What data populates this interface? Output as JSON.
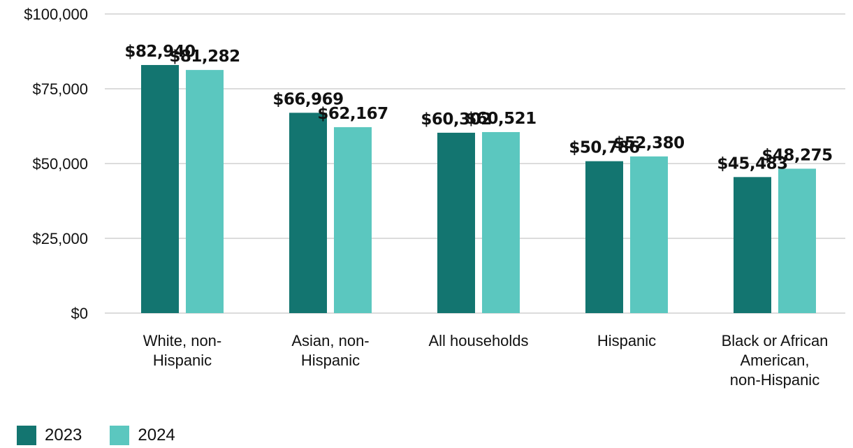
{
  "chart_data": {
    "type": "bar",
    "categories": [
      [
        "White, non-",
        "Hispanic"
      ],
      [
        "Asian, non-",
        "Hispanic"
      ],
      [
        "All households"
      ],
      [
        "Hispanic"
      ],
      [
        "Black or African",
        "American,",
        "non-Hispanic"
      ]
    ],
    "series": [
      {
        "name": "2023",
        "color": "#137570",
        "values": [
          82940,
          66969,
          60302,
          50786,
          45483
        ],
        "labels": [
          "$82,940",
          "$66,969",
          "$60,302",
          "$50,786",
          "$45,483"
        ]
      },
      {
        "name": "2024",
        "color": "#5BC7BF",
        "values": [
          81282,
          62167,
          60521,
          52380,
          48275
        ],
        "labels": [
          "$81,282",
          "$62,167",
          "$60,521",
          "$52,380",
          "$48,275"
        ]
      }
    ],
    "ylim": [
      0,
      100000
    ],
    "yticks": [
      0,
      25000,
      50000,
      75000,
      100000
    ],
    "ytick_labels": [
      "$0",
      "$25,000",
      "$50,000",
      "$75,000",
      "$100,000"
    ],
    "grid": true,
    "legend_position": "bottom-left",
    "title": "",
    "xlabel": "",
    "ylabel": ""
  }
}
